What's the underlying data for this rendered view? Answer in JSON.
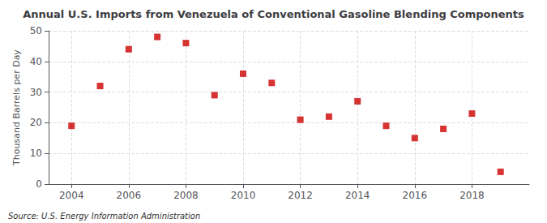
{
  "chart_data": {
    "type": "scatter",
    "title": "Annual U.S. Imports from Venezuela of Conventional Gasoline Blending Components",
    "ylabel": "Thousand Barrels per Day",
    "source": "Source: U.S. Energy Information Administration",
    "x": [
      2004,
      2005,
      2006,
      2007,
      2008,
      2009,
      2010,
      2011,
      2012,
      2013,
      2014,
      2015,
      2016,
      2017,
      2018,
      2019
    ],
    "values": [
      19,
      32,
      44,
      48,
      46,
      29,
      36,
      33,
      21,
      22,
      27,
      19,
      15,
      18,
      23,
      4
    ],
    "color": "#cc0000",
    "marker": "square",
    "xlim": [
      2003.2,
      2020.0
    ],
    "xticks": [
      2004,
      2006,
      2008,
      2010,
      2012,
      2014,
      2016,
      2018
    ],
    "ylim": [
      0,
      50
    ],
    "yticks": [
      0,
      10,
      20,
      30,
      40,
      50
    ],
    "grid": true
  }
}
